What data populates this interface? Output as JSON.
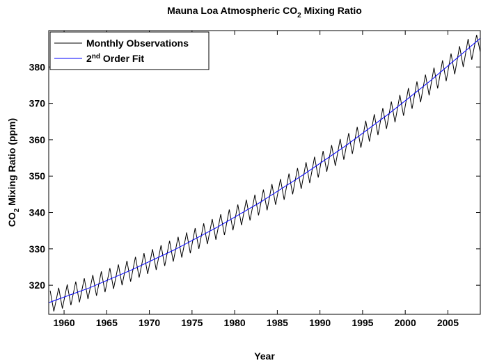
{
  "chart_data": {
    "type": "line",
    "title": [
      "Mauna Loa Atmospheric CO",
      "2",
      " Mixing Ratio"
    ],
    "x_label": "Year",
    "y_label": [
      "CO",
      "2",
      " Mixing Ratio (ppm)"
    ],
    "xlim": [
      1958.2,
      2008.8
    ],
    "ylim": [
      312,
      390
    ],
    "xticks": [
      1960,
      1965,
      1970,
      1975,
      1980,
      1985,
      1990,
      1995,
      2000,
      2005
    ],
    "yticks": [
      320,
      330,
      340,
      350,
      360,
      370,
      380
    ],
    "legend": "upper left",
    "series": [
      {
        "name": [
          "Monthly Observations"
        ],
        "color": "#000000",
        "x": [
          1958.37,
          1958.8,
          1959.37,
          1959.8,
          1960.37,
          1960.8,
          1961.37,
          1961.8,
          1962.37,
          1962.8,
          1963.37,
          1963.8,
          1964.37,
          1964.8,
          1965.37,
          1965.8,
          1966.37,
          1966.8,
          1967.37,
          1967.8,
          1968.37,
          1968.8,
          1969.37,
          1969.8,
          1970.37,
          1970.8,
          1971.37,
          1971.8,
          1972.37,
          1972.8,
          1973.37,
          1973.8,
          1974.37,
          1974.8,
          1975.37,
          1975.8,
          1976.37,
          1976.8,
          1977.37,
          1977.8,
          1978.37,
          1978.8,
          1979.37,
          1979.8,
          1980.37,
          1980.8,
          1981.37,
          1981.8,
          1982.37,
          1982.8,
          1983.37,
          1983.8,
          1984.37,
          1984.8,
          1985.37,
          1985.8,
          1986.37,
          1986.8,
          1987.37,
          1987.8,
          1988.37,
          1988.8,
          1989.37,
          1989.8,
          1990.37,
          1990.8,
          1991.37,
          1991.8,
          1992.37,
          1992.8,
          1993.37,
          1993.8,
          1994.37,
          1994.8,
          1995.37,
          1995.8,
          1996.37,
          1996.8,
          1997.37,
          1997.8,
          1998.37,
          1998.8,
          1999.37,
          1999.8,
          2000.37,
          2000.8,
          2001.37,
          2001.8,
          2002.37,
          2002.8,
          2003.37,
          2003.8,
          2004.37,
          2004.8,
          2005.37,
          2005.8,
          2006.37,
          2006.8,
          2007.37,
          2007.8,
          2008.37,
          2008.8
        ],
        "values": [
          318.5,
          312.8,
          319.3,
          313.6,
          320.2,
          314.5,
          321.0,
          315.3,
          321.9,
          316.2,
          322.8,
          317.1,
          323.8,
          318.1,
          324.7,
          319.0,
          325.7,
          320.0,
          326.7,
          321.0,
          327.8,
          322.1,
          328.8,
          323.1,
          329.9,
          324.2,
          331.0,
          325.3,
          332.2,
          326.5,
          333.3,
          327.6,
          334.5,
          328.8,
          335.7,
          330.0,
          337.0,
          331.3,
          338.2,
          332.5,
          339.5,
          333.8,
          340.8,
          335.1,
          342.2,
          336.5,
          343.5,
          337.8,
          344.9,
          339.2,
          346.3,
          340.6,
          347.8,
          342.1,
          349.2,
          343.5,
          350.7,
          345.0,
          352.2,
          346.5,
          353.8,
          348.1,
          355.3,
          349.6,
          356.9,
          351.2,
          358.5,
          352.8,
          360.2,
          354.5,
          361.8,
          356.1,
          363.5,
          357.8,
          365.2,
          359.5,
          367.0,
          361.3,
          368.7,
          363.0,
          370.5,
          364.8,
          372.3,
          366.6,
          374.2,
          368.5,
          376.0,
          370.3,
          377.9,
          372.2,
          379.8,
          374.1,
          381.8,
          376.1,
          383.7,
          378.0,
          385.7,
          380.0,
          387.7,
          382.0,
          388.8,
          384.1
        ]
      },
      {
        "name": [
          "2",
          "nd",
          " Order Fit"
        ],
        "color": "#0000ff",
        "x": [
          1958.2,
          1963,
          1968,
          1973,
          1978,
          1983,
          1988,
          1993,
          1998,
          2003,
          2008.8
        ],
        "values": [
          315.2,
          319.3,
          324.3,
          329.8,
          336.0,
          342.8,
          350.3,
          358.3,
          367.0,
          376.3,
          387.9
        ]
      }
    ]
  }
}
